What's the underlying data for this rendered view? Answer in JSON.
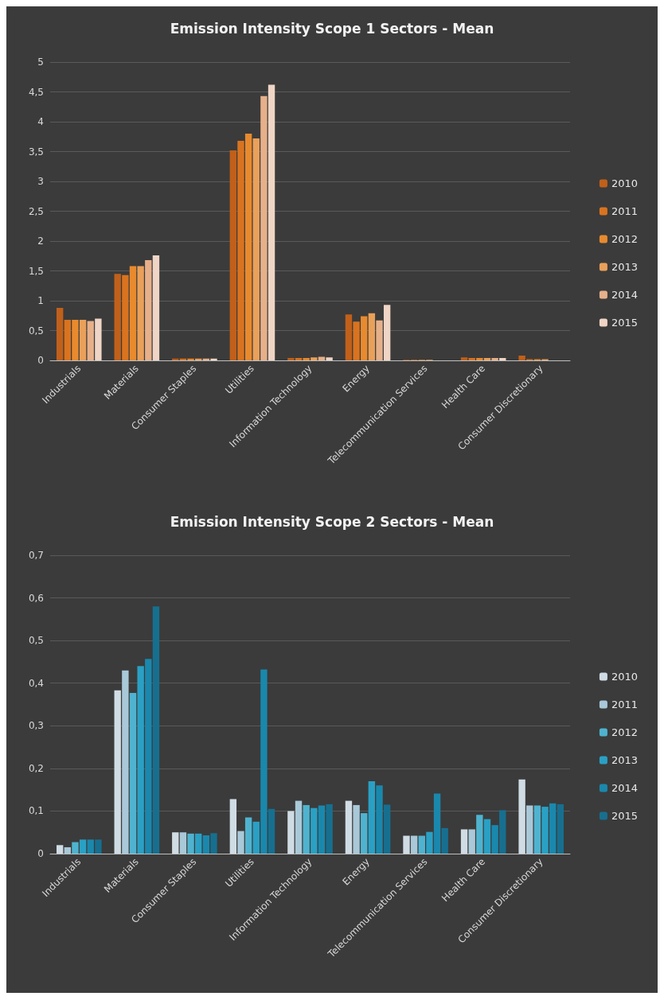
{
  "chart_data": [
    {
      "type": "bar",
      "title": "Emission Intensity Scope 1 Sectors - Mean",
      "categories": [
        "Industrials",
        "Materials",
        "Consumer Staples",
        "Utilities",
        "Information Technology",
        "Energy",
        "Telecommunication Services",
        "Health Care",
        "Consumer Discretionary"
      ],
      "series": [
        {
          "name": "2010",
          "color": "#c0601a",
          "values": [
            0.88,
            1.45,
            0.03,
            3.52,
            0.04,
            0.77,
            0.01,
            0.05,
            0.08
          ]
        },
        {
          "name": "2011",
          "color": "#d9731f",
          "values": [
            0.68,
            1.43,
            0.03,
            3.68,
            0.04,
            0.65,
            0.01,
            0.04,
            0.02
          ]
        },
        {
          "name": "2012",
          "color": "#e88a2e",
          "values": [
            0.68,
            1.58,
            0.03,
            3.8,
            0.04,
            0.74,
            0.01,
            0.04,
            0.02
          ]
        },
        {
          "name": "2013",
          "color": "#e9a05a",
          "values": [
            0.68,
            1.58,
            0.03,
            3.72,
            0.05,
            0.79,
            0.01,
            0.04,
            0.02
          ]
        },
        {
          "name": "2014",
          "color": "#e6b08a",
          "values": [
            0.66,
            1.68,
            0.03,
            4.43,
            0.06,
            0.67,
            null,
            0.04,
            null
          ]
        },
        {
          "name": "2015",
          "color": "#efd5c5",
          "values": [
            0.7,
            1.76,
            0.03,
            4.62,
            0.05,
            0.93,
            null,
            0.04,
            null
          ]
        }
      ],
      "ylim": [
        0,
        5
      ],
      "yticks": [
        0,
        {
          "value": 0.5,
          "label": "0,5"
        },
        1,
        {
          "value": 1.5,
          "label": "1,5"
        },
        2,
        {
          "value": 2.5,
          "label": "2,5"
        },
        3,
        {
          "value": 3.5,
          "label": "3,5"
        },
        4,
        {
          "value": 4.5,
          "label": "4,5"
        },
        5
      ],
      "grid": "y",
      "legend": "right"
    },
    {
      "type": "bar",
      "title": "Emission Intensity Scope 2 Sectors - Mean",
      "categories": [
        "Industrials",
        "Materials",
        "Consumer Staples",
        "Utilities",
        "Information Technology",
        "Energy",
        "Telecommunication Services",
        "Health Care",
        "Consumer Discretionary"
      ],
      "series": [
        {
          "name": "2010",
          "color": "#d0dce4",
          "values": [
            0.02,
            0.383,
            0.05,
            0.128,
            0.1,
            0.124,
            0.042,
            0.057,
            0.174
          ]
        },
        {
          "name": "2011",
          "color": "#a9c8d8",
          "values": [
            0.015,
            0.43,
            0.05,
            0.053,
            0.124,
            0.114,
            0.042,
            0.057,
            0.113
          ]
        },
        {
          "name": "2012",
          "color": "#4fb3cf",
          "values": [
            0.027,
            0.377,
            0.047,
            0.085,
            0.114,
            0.095,
            0.042,
            0.091,
            0.113
          ]
        },
        {
          "name": "2013",
          "color": "#2aa0c4",
          "values": [
            0.033,
            0.44,
            0.047,
            0.075,
            0.107,
            0.17,
            0.051,
            0.081,
            0.11
          ]
        },
        {
          "name": "2014",
          "color": "#1a88ad",
          "values": [
            0.033,
            0.457,
            0.043,
            0.432,
            0.113,
            0.16,
            0.141,
            0.067,
            0.118
          ]
        },
        {
          "name": "2015",
          "color": "#176f8f",
          "values": [
            0.033,
            0.58,
            0.048,
            0.105,
            0.116,
            0.115,
            0.06,
            0.102,
            0.116
          ]
        }
      ],
      "ylim": [
        0,
        0.7
      ],
      "yticks": [
        0,
        {
          "value": 0.1,
          "label": "0,1"
        },
        {
          "value": 0.2,
          "label": "0,2"
        },
        {
          "value": 0.3,
          "label": "0,3"
        },
        {
          "value": 0.4,
          "label": "0,4"
        },
        {
          "value": 0.5,
          "label": "0,5"
        },
        {
          "value": 0.6,
          "label": "0,6"
        },
        {
          "value": 0.7,
          "label": "0,7"
        }
      ],
      "grid": "y",
      "legend": "right"
    }
  ]
}
